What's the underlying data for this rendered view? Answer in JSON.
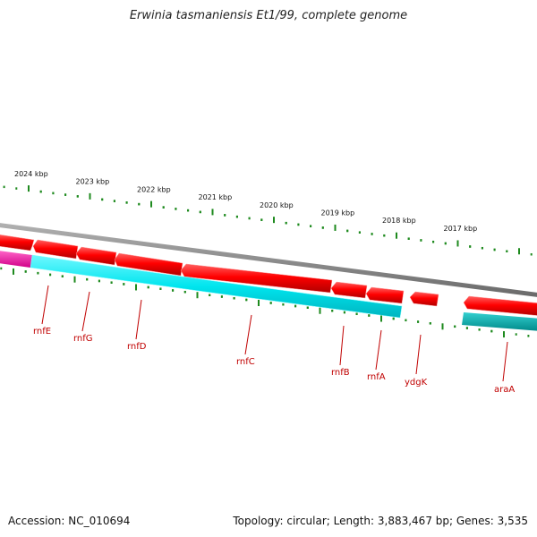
{
  "title": "Erwinia tasmaniensis Et1/99, complete genome",
  "footer": {
    "accession": "Accession: NC_010694",
    "summary": "Topology: circular; Length: 3,883,467 bp; Genes: 3,535"
  },
  "colors": {
    "backbone": "#8a8a8a",
    "forward_feature": "#ff0000",
    "cds_track": "#00e5ee",
    "cds_track_right": "#00b3b3",
    "pink_track": "#ff1aa8",
    "tick": "#1e8a1e",
    "gene_label": "#c00000"
  },
  "kbp_ticks": [
    {
      "label": "2024 kbp"
    },
    {
      "label": "2023 kbp"
    },
    {
      "label": "2022 kbp"
    },
    {
      "label": "2021 kbp"
    },
    {
      "label": "2020 kbp"
    },
    {
      "label": "2019 kbp"
    },
    {
      "label": "2018 kbp"
    },
    {
      "label": "2017 kbp"
    }
  ],
  "genes": [
    {
      "name": "rnfE"
    },
    {
      "name": "rnfG"
    },
    {
      "name": "rnfD"
    },
    {
      "name": "rnfC"
    },
    {
      "name": "rnfB"
    },
    {
      "name": "rnfA"
    },
    {
      "name": "ydgK"
    },
    {
      "name": "araA"
    }
  ]
}
